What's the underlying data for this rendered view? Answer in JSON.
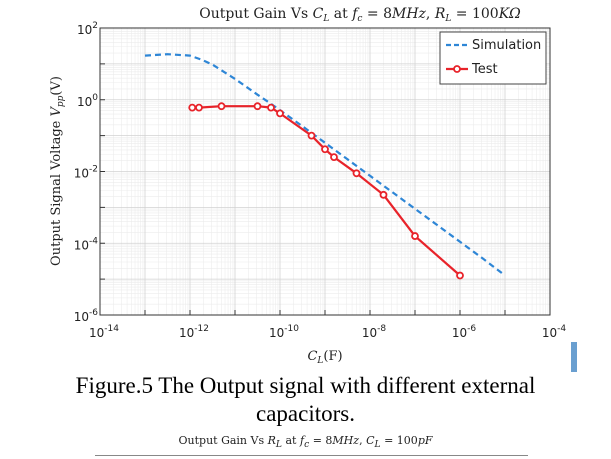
{
  "chart_data": {
    "type": "line",
    "title": "Output Gain Vs C_L at f_c = 8MHz, R_L = 100KΩ",
    "title_parts": [
      "Output Gain Vs ",
      "C",
      "L",
      " at ",
      "f",
      "c",
      " = 8",
      "MHz",
      ", ",
      "R",
      "L",
      " = 100",
      "KΩ"
    ],
    "xlabel": "C_L(F)",
    "xlabel_parts": [
      "C",
      "L",
      "(F)"
    ],
    "ylabel": "Output Signal Voltage V_pp(V)",
    "ylabel_parts": [
      "Output Signal Voltage ",
      "V",
      "pp",
      "(V)"
    ],
    "xscale": "log",
    "yscale": "log",
    "xlim_exp": [
      -14,
      -4
    ],
    "ylim_exp": [
      -6,
      2
    ],
    "x_ticks": [
      {
        "base": "10",
        "exp": "-14"
      },
      {
        "base": "10",
        "exp": "-12"
      },
      {
        "base": "10",
        "exp": "-10"
      },
      {
        "base": "10",
        "exp": "-8"
      },
      {
        "base": "10",
        "exp": "-6"
      },
      {
        "base": "10",
        "exp": "-4"
      }
    ],
    "y_ticks": [
      {
        "base": "10",
        "exp": "-6"
      },
      {
        "base": "10",
        "exp": "-4"
      },
      {
        "base": "10",
        "exp": "-2"
      },
      {
        "base": "10",
        "exp": "0"
      },
      {
        "base": "10",
        "exp": "2"
      }
    ],
    "x_tick_values": [
      -14,
      -12,
      -10,
      -8,
      -6,
      -4
    ],
    "y_tick_values": [
      -6,
      -4,
      -2,
      0,
      2
    ],
    "grid": true,
    "legend_position": "top-right",
    "series": [
      {
        "name": "Simulation",
        "color": "#2e86d6",
        "style": "dashed",
        "log10_x": [
          -13,
          -12.5,
          -12,
          -11.75,
          -11.5,
          -11.25,
          -11,
          -10.75,
          -10.5,
          -10.25,
          -10,
          -9.5,
          -9,
          -8.5,
          -8,
          -7.5,
          -7,
          -6.5,
          -6,
          -5.5,
          -5
        ],
        "log10_y": [
          1.23,
          1.27,
          1.23,
          1.12,
          0.98,
          0.78,
          0.58,
          0.36,
          0.14,
          -0.07,
          -0.29,
          -0.74,
          -1.2,
          -1.66,
          -2.12,
          -2.58,
          -3.04,
          -3.5,
          -3.96,
          -4.42,
          -4.9
        ]
      },
      {
        "name": "Test",
        "color": "#e8232a",
        "style": "solid-marker",
        "log10_x": [
          -11.95,
          -11.8,
          -11.3,
          -10.5,
          -10.2,
          -10,
          -9.3,
          -9,
          -8.8,
          -8.3,
          -7.7,
          -7,
          -6
        ],
        "log10_y": [
          -0.22,
          -0.22,
          -0.18,
          -0.18,
          -0.22,
          -0.38,
          -1.0,
          -1.38,
          -1.6,
          -2.05,
          -2.65,
          -3.8,
          -4.9
        ]
      }
    ]
  },
  "caption": {
    "line1": "Figure.5 The Output signal with different external",
    "line2": "capacitors."
  },
  "next_figure_title": "Output Gain Vs R_L at f_c = 8MHz, C_L = 100pF",
  "next_figure_title_parts": [
    "Output Gain Vs ",
    "R",
    "L",
    " at ",
    "f",
    "c",
    " = 8",
    "MHz",
    ", ",
    "C",
    "L",
    " = 100",
    "pF"
  ]
}
